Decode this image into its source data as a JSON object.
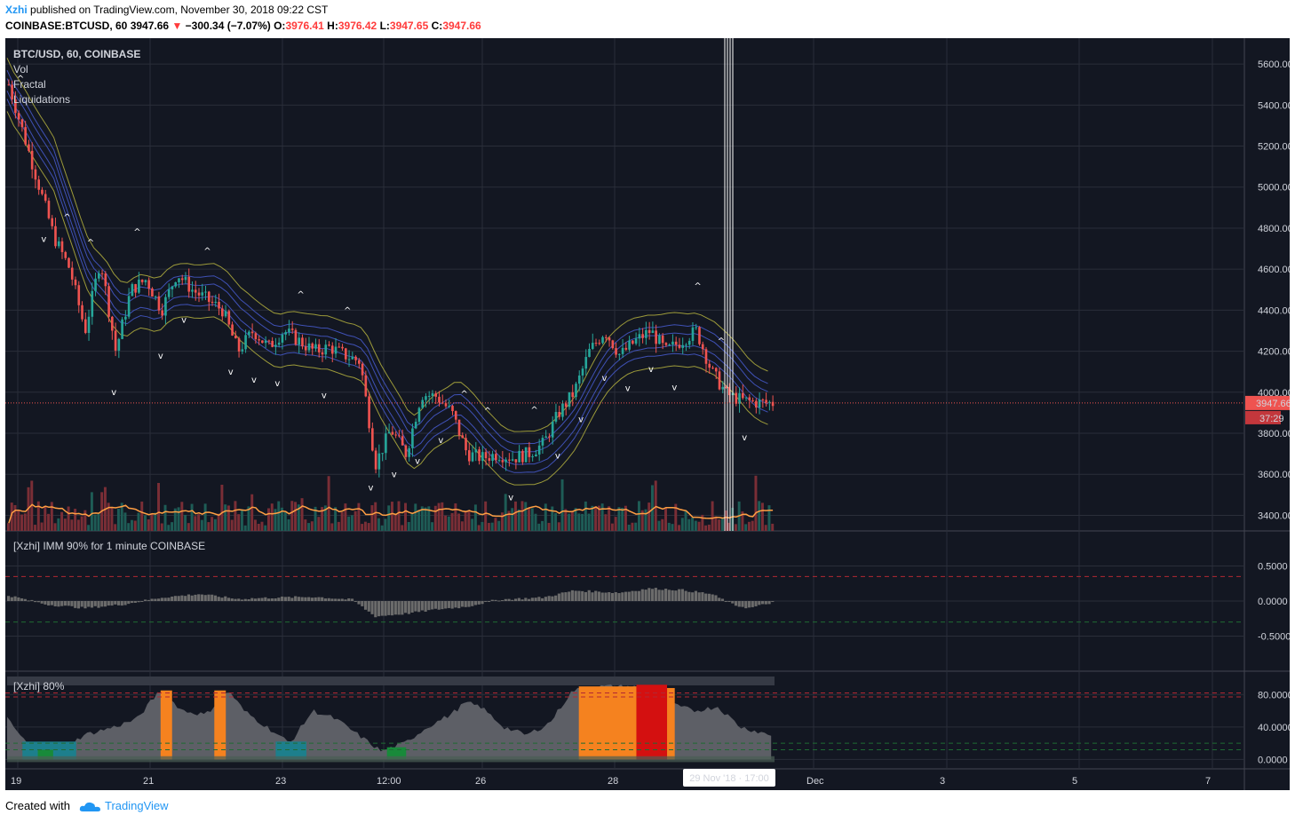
{
  "header": {
    "author": "Xzhi",
    "published": "published on TradingView.com, November 30, 2018 09:22 CST",
    "symbol": "COINBASE:BTCUSD, 60",
    "last": "3947.66",
    "arrow": "▼",
    "change": "−300.34 (−7.07%)",
    "o_label": "O:",
    "o_value": "3976.41",
    "h_label": "H:",
    "h_value": "3976.42",
    "l_label": "L:",
    "l_value": "3947.65",
    "c_label": "C:",
    "c_value": "3947.66"
  },
  "footer": {
    "created_with": "Created with",
    "brand": "TradingView",
    "logo_icon": "tradingview-cloud-icon"
  },
  "colors": {
    "background": "#131722",
    "grid": "#2a2e39",
    "up": "#26a69a",
    "down": "#ef5350",
    "volume_ma": "#ff9f43",
    "price_line": "#ef5350",
    "ribbon_outer": "#9c9a3a",
    "ribbon_inner": "#3f51b5"
  },
  "chart_data": [
    {
      "type": "candlestick",
      "legend": [
        "BTC/USD, 60, COINBASE",
        "Vol",
        "Fractal",
        "Liquidations"
      ],
      "ylim": [
        3350,
        5700
      ],
      "y_ticks": [
        "5600.00",
        "5400.00",
        "5200.00",
        "5000.00",
        "4800.00",
        "4600.00",
        "4400.00",
        "4200.00",
        "4000.00",
        "3800.00",
        "3600.00",
        "3400.00"
      ],
      "last_price_label": "3947.66",
      "countdown_label": "37:29",
      "price_path": [
        [
          0,
          5500
        ],
        [
          0.02,
          5250
        ],
        [
          0.04,
          5000
        ],
        [
          0.06,
          4750
        ],
        [
          0.08,
          4600
        ],
        [
          0.1,
          4300
        ],
        [
          0.12,
          4650
        ],
        [
          0.14,
          4200
        ],
        [
          0.16,
          4500
        ],
        [
          0.18,
          4550
        ],
        [
          0.2,
          4400
        ],
        [
          0.22,
          4580
        ],
        [
          0.24,
          4500
        ],
        [
          0.26,
          4450
        ],
        [
          0.28,
          4400
        ],
        [
          0.3,
          4200
        ],
        [
          0.32,
          4300
        ],
        [
          0.34,
          4220
        ],
        [
          0.36,
          4300
        ],
        [
          0.38,
          4250
        ],
        [
          0.4,
          4200
        ],
        [
          0.42,
          4220
        ],
        [
          0.44,
          4180
        ],
        [
          0.46,
          4150
        ],
        [
          0.48,
          3650
        ],
        [
          0.5,
          3820
        ],
        [
          0.52,
          3700
        ],
        [
          0.54,
          3990
        ],
        [
          0.56,
          3980
        ],
        [
          0.58,
          3900
        ],
        [
          0.6,
          3700
        ],
        [
          0.62,
          3680
        ],
        [
          0.64,
          3700
        ],
        [
          0.66,
          3680
        ],
        [
          0.68,
          3700
        ],
        [
          0.7,
          3750
        ],
        [
          0.72,
          3900
        ],
        [
          0.74,
          4000
        ],
        [
          0.76,
          4200
        ],
        [
          0.78,
          4300
        ],
        [
          0.8,
          4180
        ],
        [
          0.82,
          4250
        ],
        [
          0.84,
          4300
        ],
        [
          0.86,
          4200
        ],
        [
          0.88,
          4250
        ],
        [
          0.9,
          4300
        ],
        [
          0.92,
          4100
        ],
        [
          0.94,
          3990
        ],
        [
          0.96,
          3960
        ],
        [
          0.98,
          3950
        ],
        [
          1,
          3947.66
        ]
      ]
    },
    {
      "type": "area",
      "legend": [
        "[Xzhi] IMM 90% for 1 minute COINBASE"
      ],
      "ylim": [
        -0.9,
        0.9
      ],
      "y_ticks": [
        "0.5000",
        "0.0000",
        "-0.5000"
      ],
      "series": [
        [
          0,
          0.08
        ],
        [
          0.05,
          -0.05
        ],
        [
          0.1,
          -0.1
        ],
        [
          0.15,
          -0.05
        ],
        [
          0.2,
          0.05
        ],
        [
          0.25,
          0.1
        ],
        [
          0.3,
          0.03
        ],
        [
          0.35,
          0.05
        ],
        [
          0.4,
          0.06
        ],
        [
          0.45,
          0.02
        ],
        [
          0.48,
          -0.22
        ],
        [
          0.52,
          -0.18
        ],
        [
          0.56,
          -0.12
        ],
        [
          0.6,
          -0.08
        ],
        [
          0.64,
          0.02
        ],
        [
          0.7,
          0.05
        ],
        [
          0.74,
          0.15
        ],
        [
          0.8,
          0.12
        ],
        [
          0.84,
          0.18
        ],
        [
          0.88,
          0.16
        ],
        [
          0.92,
          0.1
        ],
        [
          0.95,
          -0.06
        ],
        [
          0.97,
          -0.1
        ],
        [
          1,
          -0.02
        ]
      ]
    },
    {
      "type": "area",
      "legend": [
        "[Xzhi] 80%"
      ],
      "ylim": [
        -5,
        100
      ],
      "y_ticks": [
        "80.0000",
        "40.0000",
        "0.0000"
      ],
      "series": [
        [
          0,
          50
        ],
        [
          0.03,
          15
        ],
        [
          0.07,
          10
        ],
        [
          0.1,
          30
        ],
        [
          0.14,
          40
        ],
        [
          0.17,
          50
        ],
        [
          0.2,
          85
        ],
        [
          0.23,
          60
        ],
        [
          0.26,
          55
        ],
        [
          0.29,
          85
        ],
        [
          0.31,
          60
        ],
        [
          0.34,
          40
        ],
        [
          0.37,
          20
        ],
        [
          0.4,
          60
        ],
        [
          0.43,
          50
        ],
        [
          0.46,
          30
        ],
        [
          0.49,
          10
        ],
        [
          0.52,
          20
        ],
        [
          0.55,
          40
        ],
        [
          0.58,
          55
        ],
        [
          0.6,
          70
        ],
        [
          0.62,
          65
        ],
        [
          0.65,
          40
        ],
        [
          0.68,
          30
        ],
        [
          0.71,
          45
        ],
        [
          0.74,
          85
        ],
        [
          0.78,
          90
        ],
        [
          0.82,
          90
        ],
        [
          0.86,
          70
        ],
        [
          0.9,
          60
        ],
        [
          0.93,
          65
        ],
        [
          0.96,
          40
        ],
        [
          1,
          30
        ]
      ]
    }
  ],
  "x_axis": {
    "ticks": [
      "19",
      "21",
      "23",
      "12:00",
      "26",
      "28",
      "Dec",
      "3",
      "5",
      "7"
    ],
    "crosshair_label": "29 Nov '18 · 17:00"
  }
}
